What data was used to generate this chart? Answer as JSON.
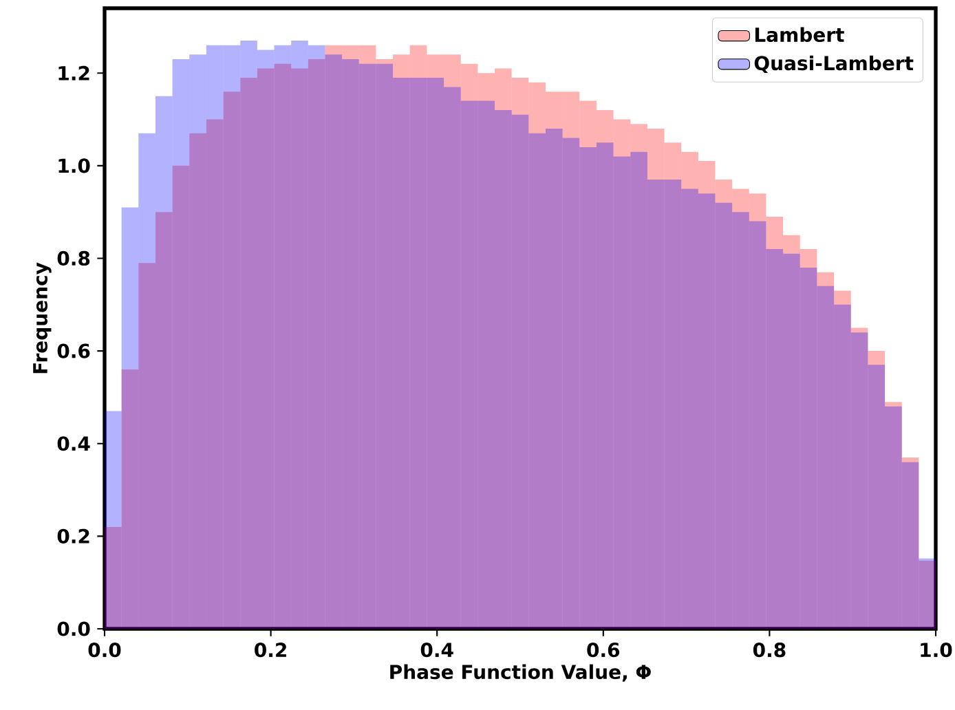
{
  "chart_data": {
    "type": "histogram",
    "xlabel": "Phase Function Value, Φ",
    "ylabel": "Frequency",
    "bins": [
      0,
      0.0204,
      0.0408,
      0.0612,
      0.0816,
      0.102,
      0.1224,
      0.1429,
      0.1633,
      0.1837,
      0.2041,
      0.2245,
      0.2449,
      0.2653,
      0.2857,
      0.3061,
      0.3265,
      0.3469,
      0.3673,
      0.3878,
      0.4082,
      0.4286,
      0.449,
      0.4694,
      0.4898,
      0.5102,
      0.5306,
      0.551,
      0.5714,
      0.5918,
      0.6122,
      0.6327,
      0.6531,
      0.6735,
      0.6939,
      0.7143,
      0.7347,
      0.7551,
      0.7755,
      0.7959,
      0.8163,
      0.8367,
      0.8571,
      0.8776,
      0.898,
      0.9184,
      0.9388,
      0.9592,
      0.9796,
      1
    ],
    "series": [
      {
        "name": "Lambert",
        "color": "#ff0000",
        "values": [
          0.22,
          0.56,
          0.79,
          0.9,
          1.0,
          1.07,
          1.1,
          1.16,
          1.19,
          1.21,
          1.22,
          1.21,
          1.23,
          1.26,
          1.26,
          1.26,
          1.23,
          1.24,
          1.26,
          1.24,
          1.24,
          1.22,
          1.2,
          1.21,
          1.19,
          1.18,
          1.16,
          1.16,
          1.14,
          1.12,
          1.1,
          1.09,
          1.08,
          1.05,
          1.03,
          1.01,
          0.97,
          0.95,
          0.94,
          0.89,
          0.85,
          0.82,
          0.77,
          0.73,
          0.65,
          0.6,
          0.49,
          0.37,
          0.147
        ]
      },
      {
        "name": "Quasi-Lambert",
        "color": "#0000ff",
        "values": [
          0.47,
          0.91,
          1.07,
          1.15,
          1.23,
          1.24,
          1.26,
          1.26,
          1.27,
          1.25,
          1.26,
          1.27,
          1.26,
          1.24,
          1.23,
          1.22,
          1.22,
          1.19,
          1.19,
          1.19,
          1.17,
          1.14,
          1.14,
          1.12,
          1.11,
          1.07,
          1.08,
          1.06,
          1.04,
          1.05,
          1.02,
          1.03,
          0.97,
          0.97,
          0.95,
          0.94,
          0.92,
          0.9,
          0.88,
          0.82,
          0.81,
          0.78,
          0.74,
          0.7,
          0.64,
          0.57,
          0.48,
          0.36,
          0.152
        ]
      }
    ],
    "xlim": [
      0,
      1
    ],
    "ylim": [
      0,
      1.34
    ],
    "xticks": [
      {
        "value": 0,
        "label": "0.0"
      },
      0.2,
      0.4,
      0.6,
      0.8,
      {
        "value": 1,
        "label": "1.0"
      }
    ],
    "yticks": [
      {
        "value": 0,
        "label": "0.0"
      },
      0.2,
      0.4,
      0.6,
      0.8,
      {
        "value": 1,
        "label": "1.0"
      },
      1.2
    ],
    "legend": "top right"
  }
}
